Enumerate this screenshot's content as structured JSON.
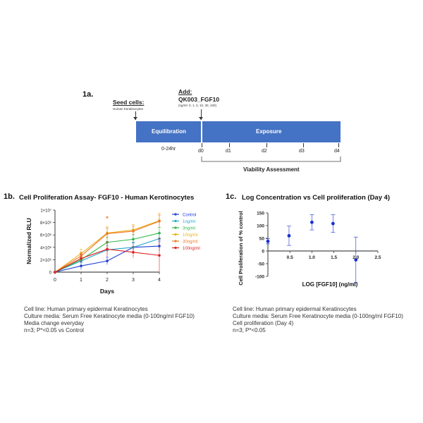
{
  "panel_a": {
    "label": "1a.",
    "seed_title": "Seed cells:",
    "seed_subtitle": "Human Keratinocytes",
    "add_title": "Add:",
    "add_compound": "QK003_FGF10",
    "add_doses": "(ng/ml: 0, 1, 3, 10, 30, 100)",
    "equilibration_label": "Equilibration",
    "exposure_label": "Exposure",
    "equil_time": "0-24hr",
    "days": [
      "d0",
      "d1",
      "d2",
      "d3",
      "d4"
    ],
    "viability_label": "Viability Assessment",
    "bar_color": "#4472C4"
  },
  "panel_b": {
    "label": "1b.",
    "title": "Cell Proliferation Assay- FGF10 - Human Kerotinocytes",
    "caption": [
      "Cell line: Human primary epidermal Keratinocytes",
      "Culture media: Serum Free Keratinocyte media (0-100ng/ml FGF10)",
      "Media change everyday",
      "n=3; P*<0.05 vs Control"
    ]
  },
  "panel_c": {
    "label": "1c.",
    "title": "Log Concentration vs Cell proliferation (Day 4)",
    "caption": [
      "Cell line: Human primary epidermal Keratinocytes",
      "Culture media: Serum Free Keratinocyte media (0-100ng/ml FGF10)",
      "Cell proliferation (Day 4)",
      "n=3; P*<0.05"
    ]
  },
  "chart_data": [
    {
      "type": "line",
      "title": "Cell Proliferation Assay- FGF10 - Human Kerotinocytes",
      "xlabel": "Days",
      "ylabel": "Normalized RLU",
      "x": [
        0,
        1,
        2,
        3,
        4
      ],
      "x_ticks": [
        "0",
        "1",
        "2",
        "3",
        "4"
      ],
      "ylim": [
        0,
        10000000
      ],
      "y_ticks": [
        0,
        2000000,
        4000000,
        6000000,
        8000000,
        10000000
      ],
      "y_tick_labels": [
        "0",
        "2×10⁶",
        "4×10⁶",
        "6×10⁶",
        "8×10⁶",
        "1×10⁷"
      ],
      "legend_position": "top-right",
      "series": [
        {
          "name": "Control",
          "color": "#1f3fd6",
          "values": [
            0,
            1000000,
            1800000,
            4000000,
            4200000
          ],
          "err": [
            0,
            600000,
            600000,
            800000,
            800000
          ]
        },
        {
          "name": "1ng/ml",
          "color": "#2aa7c9",
          "values": [
            0,
            1800000,
            3600000,
            4000000,
            5400000
          ],
          "err": [
            0,
            500000,
            700000,
            700000,
            800000
          ]
        },
        {
          "name": "3ng/ml",
          "color": "#2fb84a",
          "values": [
            0,
            2000000,
            4800000,
            5300000,
            6300000
          ],
          "err": [
            0,
            500000,
            800000,
            800000,
            900000
          ]
        },
        {
          "name": "10ng/ml",
          "color": "#e8b21e",
          "values": [
            0,
            3000000,
            6300000,
            6800000,
            8300000
          ],
          "err": [
            0,
            700000,
            1000000,
            900000,
            1200000
          ]
        },
        {
          "name": "30ng/ml",
          "color": "#f07a2a",
          "values": [
            0,
            2600000,
            6200000,
            6600000,
            8200000
          ],
          "err": [
            0,
            600000,
            900000,
            800000,
            1000000
          ]
        },
        {
          "name": "100ng/ml",
          "color": "#e02020",
          "values": [
            0,
            2200000,
            3700000,
            3200000,
            2700000
          ],
          "err": [
            0,
            700000,
            1200000,
            900000,
            2700000
          ]
        }
      ],
      "annotations": [
        "*"
      ]
    },
    {
      "type": "scatter",
      "title": "Log Concentration vs Cell proliferation (Day 4)",
      "xlabel": "LOG [FGF10] (ng/ml)",
      "ylabel": "Cell Proliferation of % control",
      "xlim": [
        0,
        2.5
      ],
      "x_ticks": [
        0.5,
        1.0,
        1.5,
        2.0,
        2.5
      ],
      "x_tick_labels": [
        "0.5",
        "1.0",
        "1.5",
        "2.0",
        "2.5"
      ],
      "ylim": [
        -100,
        150
      ],
      "y_ticks": [
        150,
        100,
        50,
        0,
        -50,
        -100
      ],
      "y_tick_labels": [
        "150",
        "100",
        "50",
        "0",
        "-50",
        "-100"
      ],
      "color": "#1a2fd0",
      "points": [
        {
          "x": 0.0,
          "y": 38,
          "err": 10
        },
        {
          "x": 0.48,
          "y": 60,
          "err": 38
        },
        {
          "x": 1.0,
          "y": 113,
          "err": 30
        },
        {
          "x": 1.48,
          "y": 108,
          "err": 35
        },
        {
          "x": 2.0,
          "y": -35,
          "err": 90
        }
      ]
    }
  ]
}
